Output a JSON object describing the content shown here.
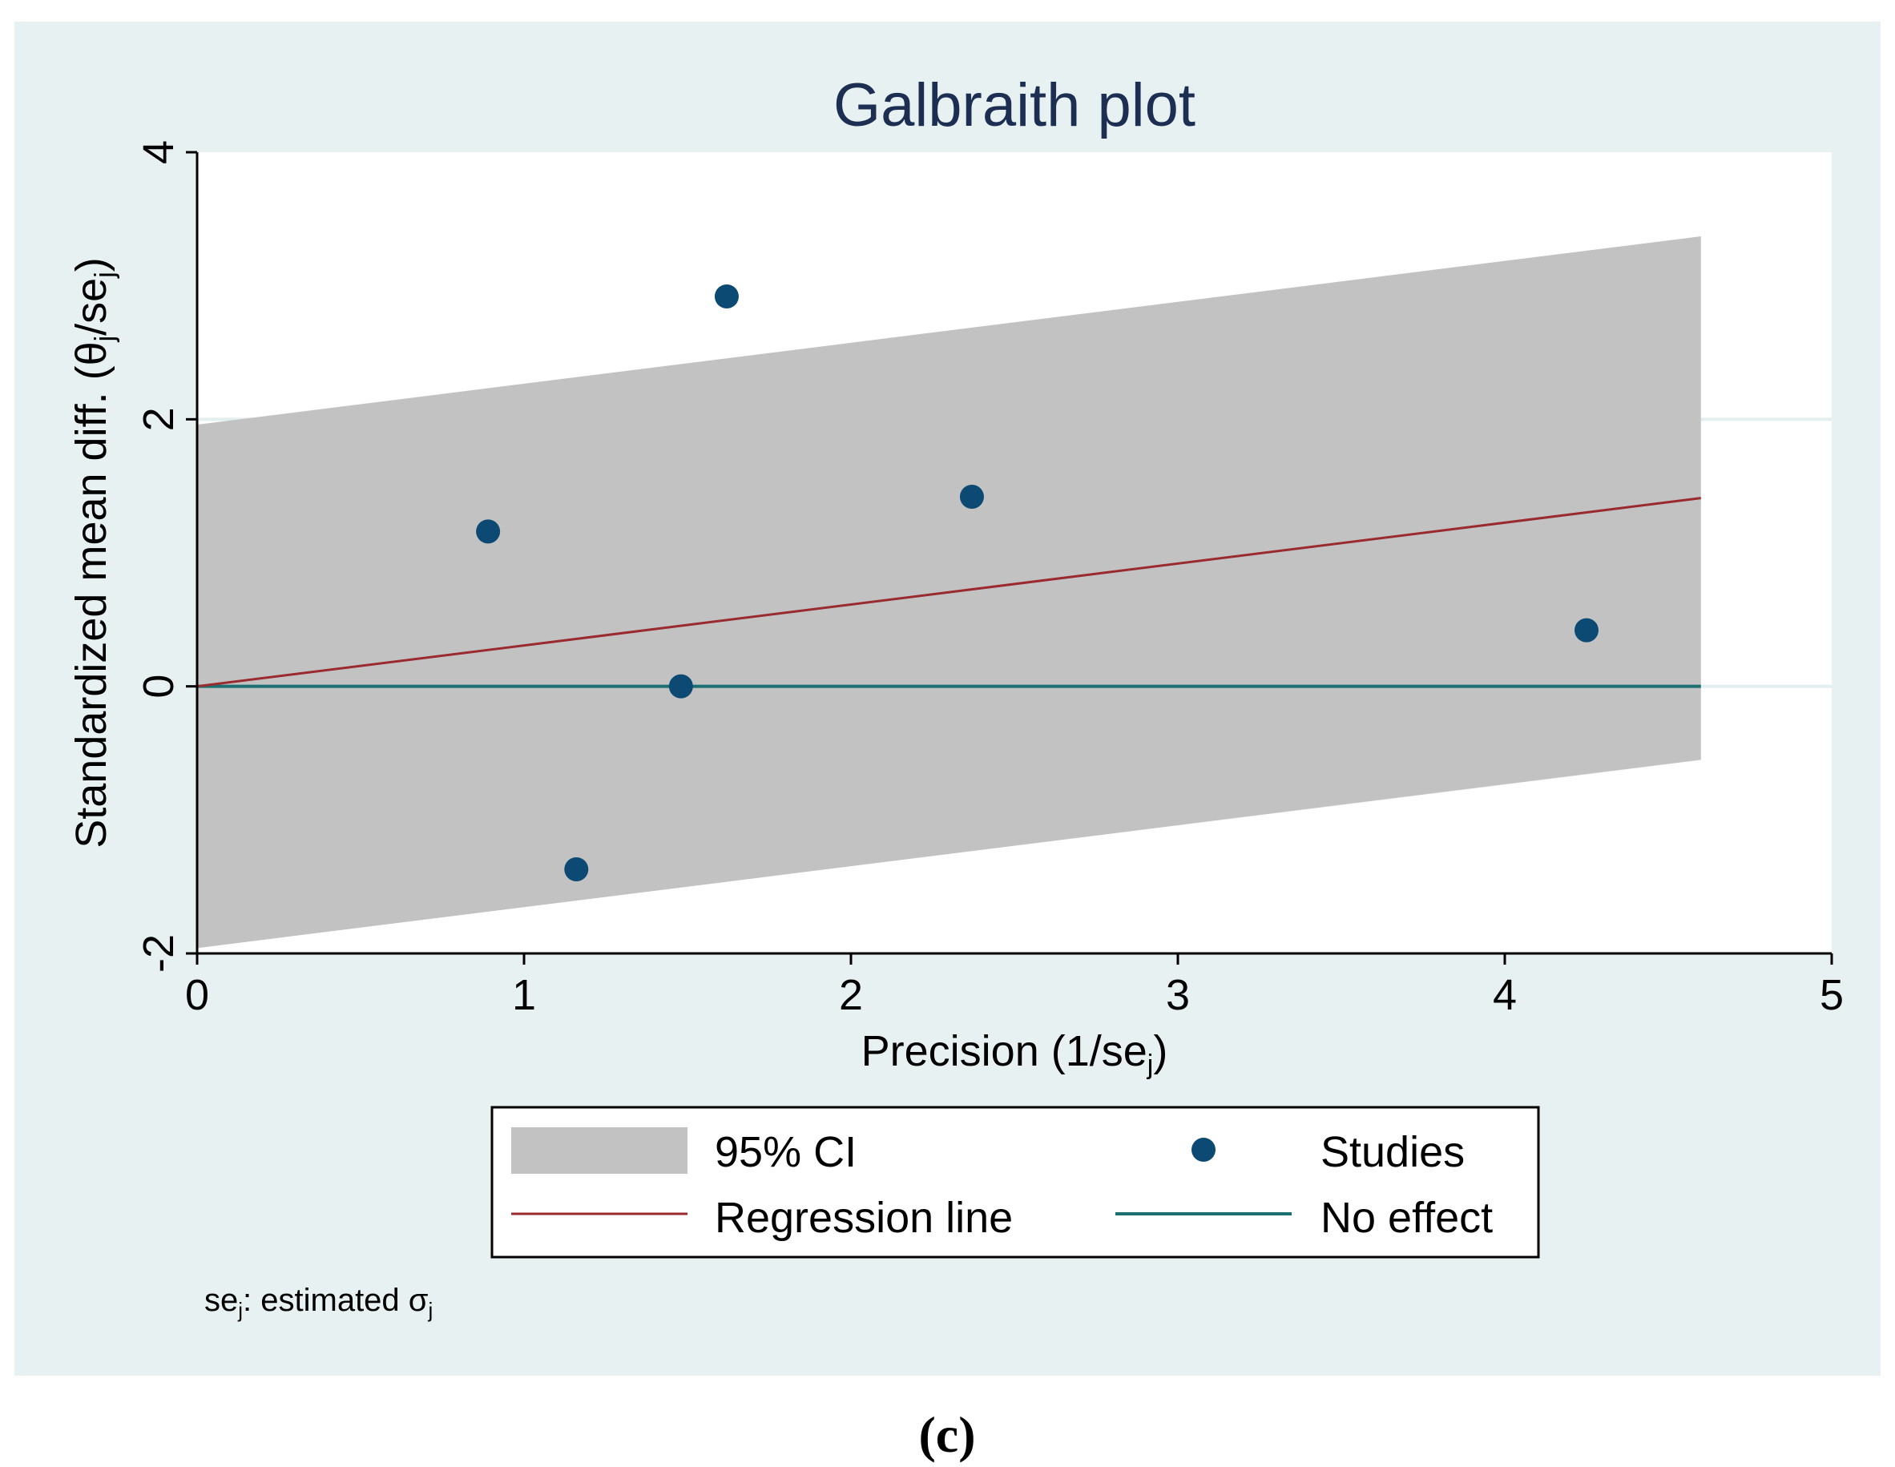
{
  "chart_data": {
    "type": "scatter",
    "title": "Galbraith plot",
    "xlabel": {
      "main": "Precision (1/se",
      "sub": "j",
      "close": ")"
    },
    "ylabel": {
      "main": "Standardized mean diff. (θ",
      "sub1": "j",
      "mid": "/se",
      "sub2": "j",
      "close": ")"
    },
    "xlim": [
      0,
      5
    ],
    "ylim": [
      -2,
      4
    ],
    "xticks": [
      0,
      1,
      2,
      3,
      4,
      5
    ],
    "yticks": [
      -2,
      0,
      2,
      4
    ],
    "grid": true,
    "studies": {
      "name": "Studies",
      "x": [
        0.89,
        1.16,
        1.48,
        1.62,
        2.37,
        4.25
      ],
      "y": [
        1.16,
        -1.37,
        0.0,
        2.92,
        1.42,
        0.42
      ]
    },
    "regression_line": {
      "name": "Regression line",
      "x": [
        0,
        4.6
      ],
      "y": [
        0,
        1.41
      ]
    },
    "ci_band": {
      "name": "95% CI",
      "x": [
        0,
        4.6
      ],
      "lower": [
        -1.96,
        -0.55
      ],
      "upper": [
        1.96,
        3.37
      ]
    },
    "no_effect_line": {
      "name": "No effect",
      "y": 0,
      "x": [
        0,
        4.6
      ]
    },
    "legend_position": "bottom",
    "note": {
      "a": "se",
      "a_sub": "j",
      "b": ": estimated σ",
      "b_sub": "j"
    },
    "panel_label": "(c)",
    "colors": {
      "outer_background": "#e8f1f2",
      "plot_background": "#ffffff",
      "ci_fill": "#c2c2c2",
      "regression": "#9b2a2f",
      "no_effect": "#1b6f70",
      "studies": "#0c4a73",
      "title": "#1c2f52",
      "grid": "#e3eef0"
    }
  }
}
